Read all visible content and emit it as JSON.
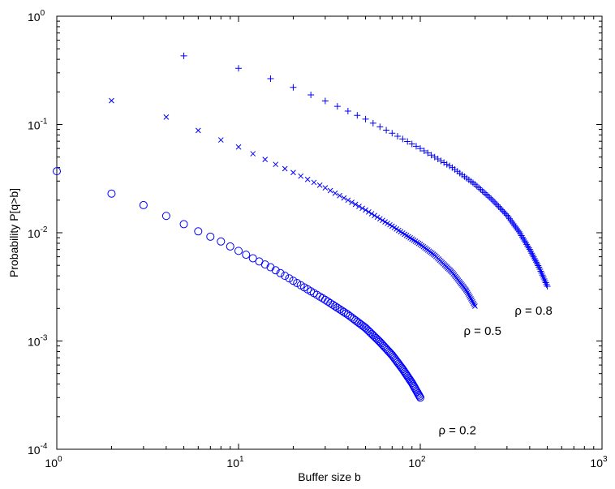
{
  "chart_data": {
    "type": "scatter",
    "title": "",
    "xlabel": "Buffer size b",
    "ylabel": "Probability P[q>b]",
    "xscale": "log",
    "yscale": "log",
    "xlim": [
      1,
      1000
    ],
    "ylim": [
      0.0001,
      1
    ],
    "grid": false,
    "legend": "none",
    "x_ticks": [
      {
        "base": "10",
        "exp": "0"
      },
      {
        "base": "10",
        "exp": "1"
      },
      {
        "base": "10",
        "exp": "2"
      },
      {
        "base": "10",
        "exp": "3"
      }
    ],
    "y_ticks": [
      {
        "base": "10",
        "exp": "-4"
      },
      {
        "base": "10",
        "exp": "-3"
      },
      {
        "base": "10",
        "exp": "-2"
      },
      {
        "base": "10",
        "exp": "-1"
      },
      {
        "base": "10",
        "exp": "0"
      }
    ],
    "series": [
      {
        "rho": 0.2,
        "marker": "circle",
        "color": "#0000ff",
        "b_max": 100,
        "points": [
          [
            1,
            0.037
          ],
          [
            2,
            0.023
          ],
          [
            3,
            0.018
          ],
          [
            4,
            0.0143
          ],
          [
            5,
            0.012
          ],
          [
            6,
            0.0103
          ],
          [
            7,
            0.0092
          ],
          [
            8,
            0.0083
          ],
          [
            10,
            0.0068
          ],
          [
            15,
            0.0048
          ],
          [
            20,
            0.0036
          ],
          [
            30,
            0.0024
          ],
          [
            40,
            0.00175
          ],
          [
            50,
            0.00132
          ],
          [
            60,
            0.00098
          ],
          [
            70,
            0.00074
          ],
          [
            80,
            0.00055
          ],
          [
            90,
            0.00041
          ],
          [
            100,
            0.0003
          ]
        ]
      },
      {
        "rho": 0.5,
        "marker": "x",
        "color": "#0000ff",
        "b_max": 200,
        "points": [
          [
            2,
            0.166
          ],
          [
            4,
            0.117
          ],
          [
            6,
            0.088
          ],
          [
            8,
            0.072
          ],
          [
            10,
            0.062
          ],
          [
            15,
            0.045
          ],
          [
            20,
            0.036
          ],
          [
            30,
            0.026
          ],
          [
            40,
            0.02
          ],
          [
            50,
            0.0162
          ],
          [
            70,
            0.0115
          ],
          [
            100,
            0.0078
          ],
          [
            120,
            0.0062
          ],
          [
            150,
            0.0043
          ],
          [
            180,
            0.0029
          ],
          [
            200,
            0.0021
          ]
        ]
      },
      {
        "rho": 0.8,
        "marker": "plus",
        "color": "#0000ff",
        "b_max": 500,
        "points": [
          [
            5,
            0.43
          ],
          [
            10,
            0.33
          ],
          [
            15,
            0.265
          ],
          [
            20,
            0.22
          ],
          [
            30,
            0.165
          ],
          [
            40,
            0.133
          ],
          [
            50,
            0.112
          ],
          [
            70,
            0.083
          ],
          [
            100,
            0.06
          ],
          [
            150,
            0.04
          ],
          [
            200,
            0.028
          ],
          [
            250,
            0.02
          ],
          [
            300,
            0.0145
          ],
          [
            350,
            0.0102
          ],
          [
            400,
            0.007
          ],
          [
            450,
            0.0048
          ],
          [
            500,
            0.0032
          ]
        ]
      }
    ],
    "annotations": [
      {
        "text": "ρ = 0.2",
        "x": 160,
        "y": 0.000138
      },
      {
        "text": "ρ = 0.5",
        "x": 220,
        "y": 0.00114
      },
      {
        "text": "ρ = 0.8",
        "x": 420,
        "y": 0.00175
      }
    ]
  }
}
